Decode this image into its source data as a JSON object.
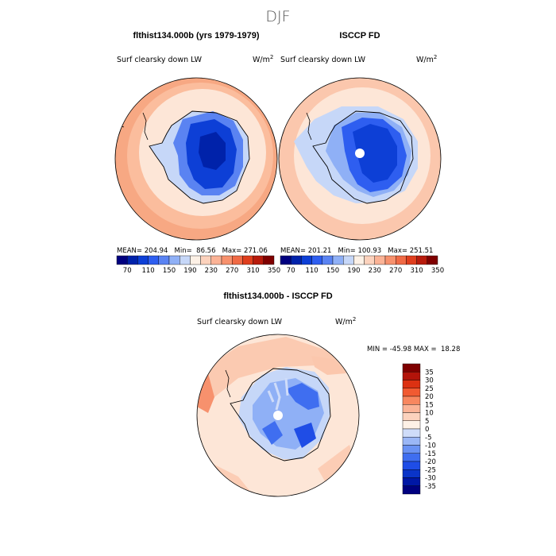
{
  "page": {
    "season": "DJF"
  },
  "panels": {
    "top_left": {
      "title": "flthist134.000b (yrs 1979-1979)",
      "variable": "Surf clearsky down LW",
      "units_base": "W/m",
      "units_exp": "2",
      "stats": "MEAN= 204.94   Min=  86.56   Max= 271.06"
    },
    "top_right": {
      "title": "ISCCP FD",
      "variable": "Surf clearsky down LW",
      "units_base": "W/m",
      "units_exp": "2",
      "stats": "MEAN= 201.21   Min= 100.93   Max= 251.51"
    },
    "bottom": {
      "title": "flthist134.000b - ISCCP FD",
      "variable": "Surf clearsky down LW",
      "units_base": "W/m",
      "units_exp": "2",
      "stats": "MIN = -45.98 MAX =  18.28"
    }
  },
  "colors": {
    "abs_bar": [
      "#00007f",
      "#0022aa",
      "#0d3fd6",
      "#2e5ef0",
      "#5a83f2",
      "#8fb0f6",
      "#c6d7f8",
      "#fdf1e6",
      "#fcd2bd",
      "#fbb396",
      "#f7916d",
      "#f06a45",
      "#df3e1d",
      "#b81b0c",
      "#7f0000"
    ],
    "diff_bar": [
      "#00007f",
      "#0017a5",
      "#0a34c8",
      "#1f4de6",
      "#3f6ef0",
      "#6a92f3",
      "#9bb7f6",
      "#cfdcf9",
      "#fdf1e6",
      "#fcd2bd",
      "#fbb396",
      "#f8875f",
      "#f15a31",
      "#dc3112",
      "#b3140a",
      "#7f0000"
    ],
    "ocean_warm": "#fbc7ad",
    "ocean_cool": "#fde6d7",
    "ice_light": "#cfdcf9",
    "ice_mid": "#6a92f3",
    "ice_deep": "#0d3fd6"
  },
  "chart_data": [
    {
      "type": "heatmap",
      "title": "flthist134.000b (yrs 1979-1979)",
      "field": "Surf clearsky down LW",
      "units": "W/m2",
      "mean": 204.94,
      "min": 86.56,
      "max": 271.06,
      "colorbar_levels": [
        70,
        110,
        150,
        190,
        230,
        270,
        310,
        350
      ]
    },
    {
      "type": "heatmap",
      "title": "ISCCP FD",
      "field": "Surf clearsky down LW",
      "units": "W/m2",
      "mean": 201.21,
      "min": 100.93,
      "max": 251.51,
      "colorbar_levels": [
        70,
        110,
        150,
        190,
        230,
        270,
        310,
        350
      ]
    },
    {
      "type": "heatmap",
      "title": "flthist134.000b - ISCCP FD",
      "field": "Surf clearsky down LW",
      "units": "W/m2",
      "min": -45.98,
      "max": 18.28,
      "colorbar_levels": [
        35,
        30,
        25,
        20,
        15,
        10,
        5,
        0,
        -5,
        -10,
        -15,
        -20,
        -25,
        -30,
        -35
      ]
    }
  ]
}
